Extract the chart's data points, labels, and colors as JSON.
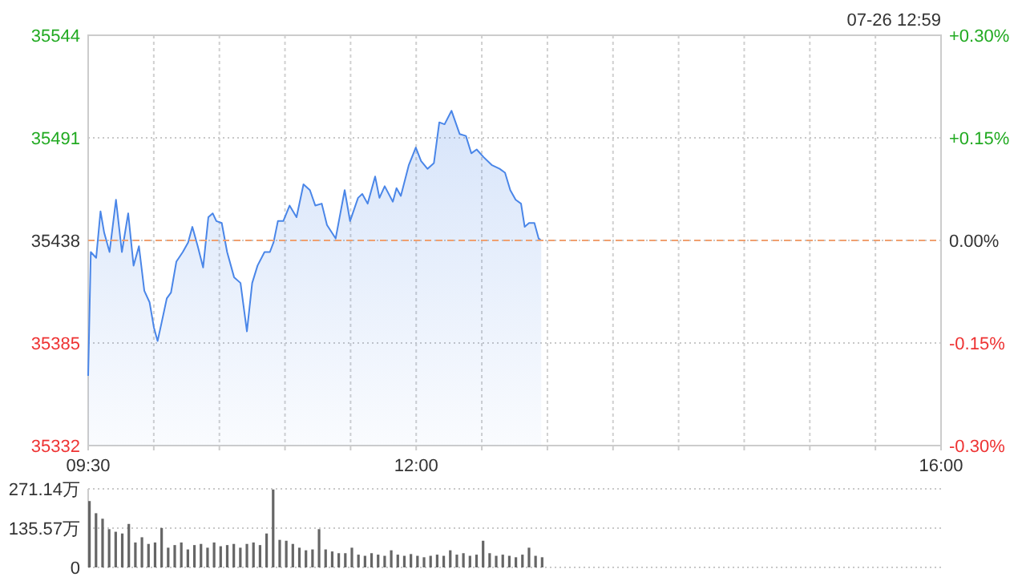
{
  "chart_data": [
    {
      "type": "area",
      "annotations": [
        "07-26 12:59"
      ],
      "xlim": [
        9.5,
        16
      ],
      "xticks": [
        {
          "value": 9.5,
          "label": "09:30"
        },
        {
          "value": 10,
          "label": null
        },
        {
          "value": 10.5,
          "label": null
        },
        {
          "value": 11,
          "label": null
        },
        {
          "value": 11.5,
          "label": null
        },
        {
          "value": 12,
          "label": "12:00"
        },
        {
          "value": 12.5,
          "label": null
        },
        {
          "value": 13,
          "label": null
        },
        {
          "value": 13.5,
          "label": null
        },
        {
          "value": 14,
          "label": null
        },
        {
          "value": 14.5,
          "label": null
        },
        {
          "value": 15,
          "label": null
        },
        {
          "value": 15.5,
          "label": null
        },
        {
          "value": 16,
          "label": "16:00"
        }
      ],
      "ylim": [
        35332,
        35544
      ],
      "yticks": [
        35332,
        35385,
        35438,
        35491,
        35544
      ],
      "y2lim": [
        -0.3,
        0.3
      ],
      "y2ticks": [
        {
          "value": -0.3,
          "label": "-0.30%"
        },
        {
          "value": -0.15,
          "label": "-0.15%"
        },
        {
          "value": 0,
          "label": "0.00%"
        },
        {
          "value": 0.15,
          "label": "+0.15%"
        },
        {
          "value": 0.3,
          "label": "+0.30%"
        }
      ],
      "grid": true,
      "ref_lines": [
        {
          "axis": "y",
          "value": 35438,
          "color": "#f0a070",
          "line_style": "dashed"
        }
      ],
      "series": [
        {
          "color": "#4a86e8",
          "x": [
            9.5,
            9.52,
            9.561,
            9.594,
            9.622,
            9.663,
            9.712,
            9.757,
            9.805,
            9.846,
            9.887,
            9.928,
            9.968,
            10.001,
            10.029,
            10.058,
            10.099,
            10.131,
            10.172,
            10.221,
            10.262,
            10.294,
            10.335,
            10.376,
            10.416,
            10.449,
            10.477,
            10.518,
            10.559,
            10.612,
            10.661,
            10.71,
            10.75,
            10.791,
            10.844,
            10.885,
            10.913,
            10.946,
            10.987,
            11.035,
            11.088,
            11.141,
            11.19,
            11.231,
            11.28,
            11.32,
            11.386,
            11.455,
            11.496,
            11.557,
            11.589,
            11.63,
            11.687,
            11.72,
            11.76,
            11.822,
            11.85,
            11.883,
            11.944,
            11.997,
            12.037,
            12.086,
            12.135,
            12.176,
            12.216,
            12.269,
            12.331,
            12.379,
            12.42,
            12.461,
            12.514,
            12.575,
            12.636,
            12.677,
            12.717,
            12.758,
            12.799,
            12.827,
            12.86,
            12.901,
            12.933,
            12.953
          ],
          "values": [
            35368,
            35432,
            35429,
            35453,
            35442,
            35432,
            35459,
            35432,
            35452,
            35425,
            35435,
            35412,
            35406,
            35393,
            35386,
            35395,
            35408,
            35411,
            35427,
            35432,
            35437,
            35445,
            35435,
            35424,
            35450,
            35452,
            35448,
            35447,
            35432,
            35419,
            35416,
            35391,
            35416,
            35425,
            35432,
            35432,
            35437,
            35448,
            35448,
            35456,
            35450,
            35467,
            35464,
            35456,
            35457,
            35446,
            35439,
            35464,
            35448,
            35460,
            35462,
            35457,
            35471,
            35460,
            35466,
            35458,
            35465,
            35461,
            35477,
            35486,
            35479,
            35475,
            35478,
            35499,
            35498,
            35505,
            35493,
            35492,
            35483,
            35485,
            35481,
            35477,
            35475,
            35473,
            35464,
            35459,
            35457,
            35445,
            35447,
            35447,
            35439,
            35438
          ]
        }
      ]
    },
    {
      "type": "bar",
      "xlim": [
        9.5,
        16
      ],
      "ylim": [
        0,
        271.14
      ],
      "yticks": [
        0,
        {
          "value": 135.57,
          "label": "135.57万"
        },
        {
          "value": 271.14,
          "label": "271.14万"
        }
      ],
      "grid": "y",
      "tick_labels": "y",
      "series": [
        {
          "color": "#666666",
          "x": [
            9.5,
            9.55,
            9.6,
            9.65,
            9.7,
            9.75,
            9.8,
            9.85,
            9.9,
            9.95,
            10,
            10.05,
            10.1,
            10.15,
            10.2,
            10.25,
            10.3,
            10.35,
            10.4,
            10.45,
            10.5,
            10.55,
            10.6,
            10.65,
            10.7,
            10.75,
            10.8,
            10.85,
            10.9,
            10.95,
            11,
            11.05,
            11.1,
            11.15,
            11.2,
            11.25,
            11.3,
            11.35,
            11.4,
            11.45,
            11.5,
            11.55,
            11.6,
            11.65,
            11.7,
            11.75,
            11.8,
            11.85,
            11.9,
            11.95,
            12,
            12.05,
            12.1,
            12.15,
            12.2,
            12.25,
            12.3,
            12.35,
            12.4,
            12.45,
            12.5,
            12.55,
            12.6,
            12.65,
            12.7,
            12.75,
            12.8,
            12.85,
            12.9,
            12.95
          ],
          "values": [
            229,
            187,
            168,
            132,
            123,
            117,
            150,
            86,
            104,
            81,
            86,
            136,
            68,
            77,
            86,
            62,
            77,
            81,
            68,
            86,
            73,
            77,
            81,
            68,
            81,
            86,
            77,
            117,
            269,
            95,
            92,
            81,
            68,
            59,
            62,
            132,
            62,
            55,
            49,
            49,
            68,
            44,
            40,
            49,
            44,
            40,
            59,
            44,
            40,
            46,
            40,
            35,
            40,
            44,
            40,
            59,
            44,
            49,
            40,
            44,
            92,
            49,
            40,
            44,
            40,
            35,
            44,
            68,
            40,
            35
          ]
        }
      ]
    }
  ]
}
